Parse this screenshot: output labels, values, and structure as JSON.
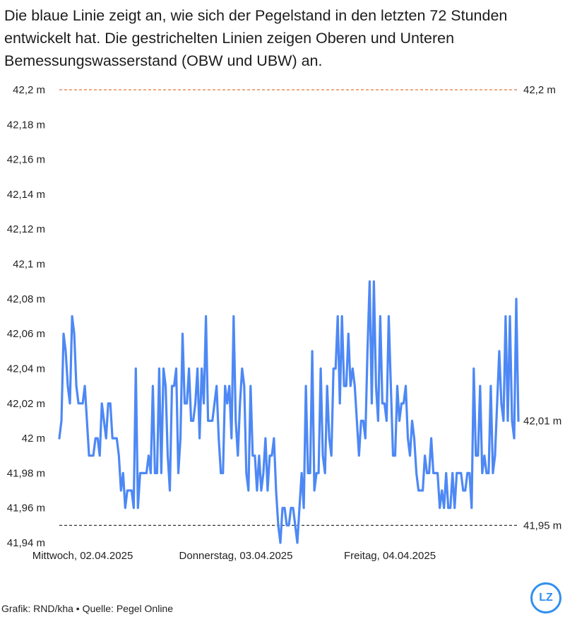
{
  "intro": "Die blaue Linie zeigt an, wie sich der Pegelstand in den letzten 72 Stunden entwickelt hat. Die gestrichelten Linien zeigen Oberen und Unteren Bemessungswasserstand (OBW und UBW) an.",
  "footer": "Grafik: RND/kha • Quelle: Pegel Online",
  "logo_text": "LZ",
  "colors": {
    "series": "#4d88f5",
    "obw_line": "#e8743b",
    "ubw_line": "#333333",
    "text": "#222222",
    "logo": "#2f8ff0"
  },
  "chart_data": {
    "type": "line",
    "y_unit": "m",
    "ylim": [
      41.94,
      42.2
    ],
    "y_ticks": [
      {
        "value": 42.2,
        "label": "42,2 m"
      },
      {
        "value": 42.18,
        "label": "42,18 m"
      },
      {
        "value": 42.16,
        "label": "42,16 m"
      },
      {
        "value": 42.14,
        "label": "42,14 m"
      },
      {
        "value": 42.12,
        "label": "42,12 m"
      },
      {
        "value": 42.1,
        "label": "42,1 m"
      },
      {
        "value": 42.08,
        "label": "42,08 m"
      },
      {
        "value": 42.06,
        "label": "42,06 m"
      },
      {
        "value": 42.04,
        "label": "42,04 m"
      },
      {
        "value": 42.02,
        "label": "42,02 m"
      },
      {
        "value": 42.0,
        "label": "42 m"
      },
      {
        "value": 41.98,
        "label": "41,98 m"
      },
      {
        "value": 41.96,
        "label": "41,96 m"
      },
      {
        "value": 41.94,
        "label": "41,94 m"
      }
    ],
    "x_ticks": [
      "Mittwoch, 02.04.2025",
      "Donnerstag, 03.04.2025",
      "Freitag, 04.04.2025"
    ],
    "grid": false,
    "reference_lines": [
      {
        "value": 42.2,
        "label": "42,2 m",
        "style": "dashed",
        "color": "#e8743b"
      },
      {
        "value": 41.95,
        "label": "41,95 m",
        "style": "dashed",
        "color": "#333333"
      }
    ],
    "last_value_label": "42,01 m",
    "series": [
      {
        "values": [
          42.0,
          42.01,
          42.06,
          42.05,
          42.03,
          42.02,
          42.07,
          42.06,
          42.03,
          42.02,
          42.02,
          42.02,
          42.03,
          42.01,
          41.99,
          41.99,
          41.99,
          42.0,
          42.0,
          41.99,
          42.02,
          42.01,
          42.0,
          42.02,
          42.02,
          42.0,
          42.0,
          42.0,
          41.99,
          41.97,
          41.98,
          41.96,
          41.97,
          41.97,
          41.97,
          41.96,
          42.04,
          41.96,
          41.98,
          41.98,
          41.98,
          41.98,
          41.99,
          41.98,
          42.03,
          41.98,
          41.98,
          42.04,
          41.98,
          42.04,
          42.03,
          41.99,
          41.97,
          42.03,
          42.03,
          42.04,
          41.98,
          42.0,
          42.06,
          42.02,
          42.02,
          42.04,
          42.01,
          42.01,
          42.02,
          42.04,
          42.0,
          42.04,
          42.02,
          42.07,
          42.01,
          42.01,
          42.01,
          42.02,
          42.03,
          42.0,
          41.98,
          41.98,
          42.03,
          42.02,
          42.03,
          42.0,
          42.07,
          42.01,
          41.99,
          42.02,
          42.04,
          42.03,
          41.98,
          41.97,
          42.03,
          41.99,
          41.99,
          41.97,
          41.99,
          41.97,
          41.98,
          42.0,
          41.97,
          41.99,
          41.99,
          42.0,
          41.97,
          41.95,
          41.94,
          41.96,
          41.96,
          41.95,
          41.95,
          41.96,
          41.96,
          41.95,
          41.94,
          41.96,
          41.98,
          41.96,
          42.03,
          41.98,
          41.98,
          42.05,
          41.97,
          41.98,
          41.98,
          42.04,
          41.99,
          41.98,
          42.03,
          42.0,
          41.99,
          42.04,
          42.04,
          42.07,
          42.02,
          42.07,
          42.03,
          42.03,
          42.06,
          42.03,
          42.04,
          42.03,
          42.01,
          41.99,
          42.01,
          42.01,
          42.0,
          42.05,
          42.09,
          42.02,
          42.09,
          42.03,
          42.01,
          42.07,
          42.02,
          42.02,
          42.01,
          42.07,
          42.03,
          41.99,
          41.99,
          42.03,
          42.01,
          42.02,
          42.02,
          42.03,
          42.0,
          41.99,
          42.01,
          42.0,
          41.98,
          41.97,
          41.97,
          41.97,
          41.99,
          41.98,
          41.98,
          42.0,
          41.98,
          41.98,
          41.98,
          41.96,
          41.97,
          41.96,
          41.98,
          41.96,
          41.96,
          41.98,
          41.96,
          41.98,
          41.98,
          41.98,
          41.97,
          41.97,
          41.98,
          41.98,
          41.96,
          42.04,
          41.99,
          41.99,
          42.03,
          41.98,
          41.99,
          41.98,
          41.98,
          42.03,
          41.98,
          41.99,
          42.02,
          42.05,
          42.02,
          42.01,
          42.07,
          42.01,
          42.07,
          42.01,
          42.0,
          42.08,
          42.01
        ]
      }
    ]
  }
}
